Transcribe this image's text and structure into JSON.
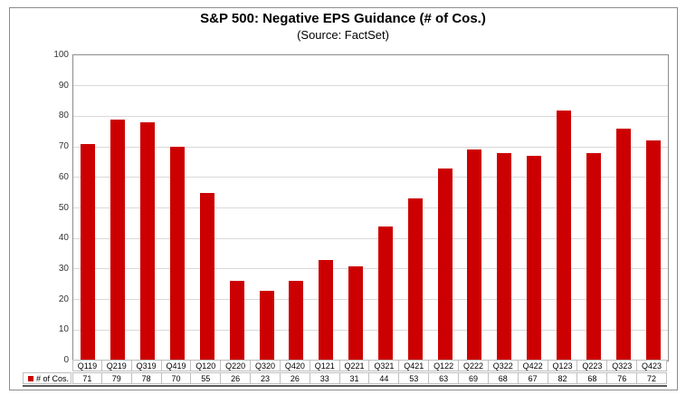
{
  "chart_data": {
    "type": "bar",
    "title": "S&P 500: Negative EPS Guidance (# of Cos.)",
    "subtitle": "(Source: FactSet)",
    "series_name": "# of Cos.",
    "categories": [
      "Q119",
      "Q219",
      "Q319",
      "Q419",
      "Q120",
      "Q220",
      "Q320",
      "Q420",
      "Q121",
      "Q221",
      "Q321",
      "Q421",
      "Q122",
      "Q222",
      "Q322",
      "Q422",
      "Q123",
      "Q223",
      "Q323",
      "Q423"
    ],
    "values": [
      71,
      79,
      78,
      70,
      55,
      26,
      23,
      26,
      33,
      31,
      44,
      53,
      63,
      69,
      68,
      67,
      82,
      68,
      76,
      72
    ],
    "xlabel": "",
    "ylabel": "",
    "ylim": [
      0,
      100
    ],
    "ytick_step": 10,
    "grid": true,
    "legend_position": "bottom-left-table",
    "bar_color": "#cc0000"
  },
  "colors": {
    "bar": "#cc0000",
    "gridline": "#d9d9d9",
    "plot_border": "#8c8c8c",
    "table_border": "#bfbfbf",
    "table_bottom_line": "#595959",
    "text": "#000000",
    "tick_text": "#333333"
  }
}
